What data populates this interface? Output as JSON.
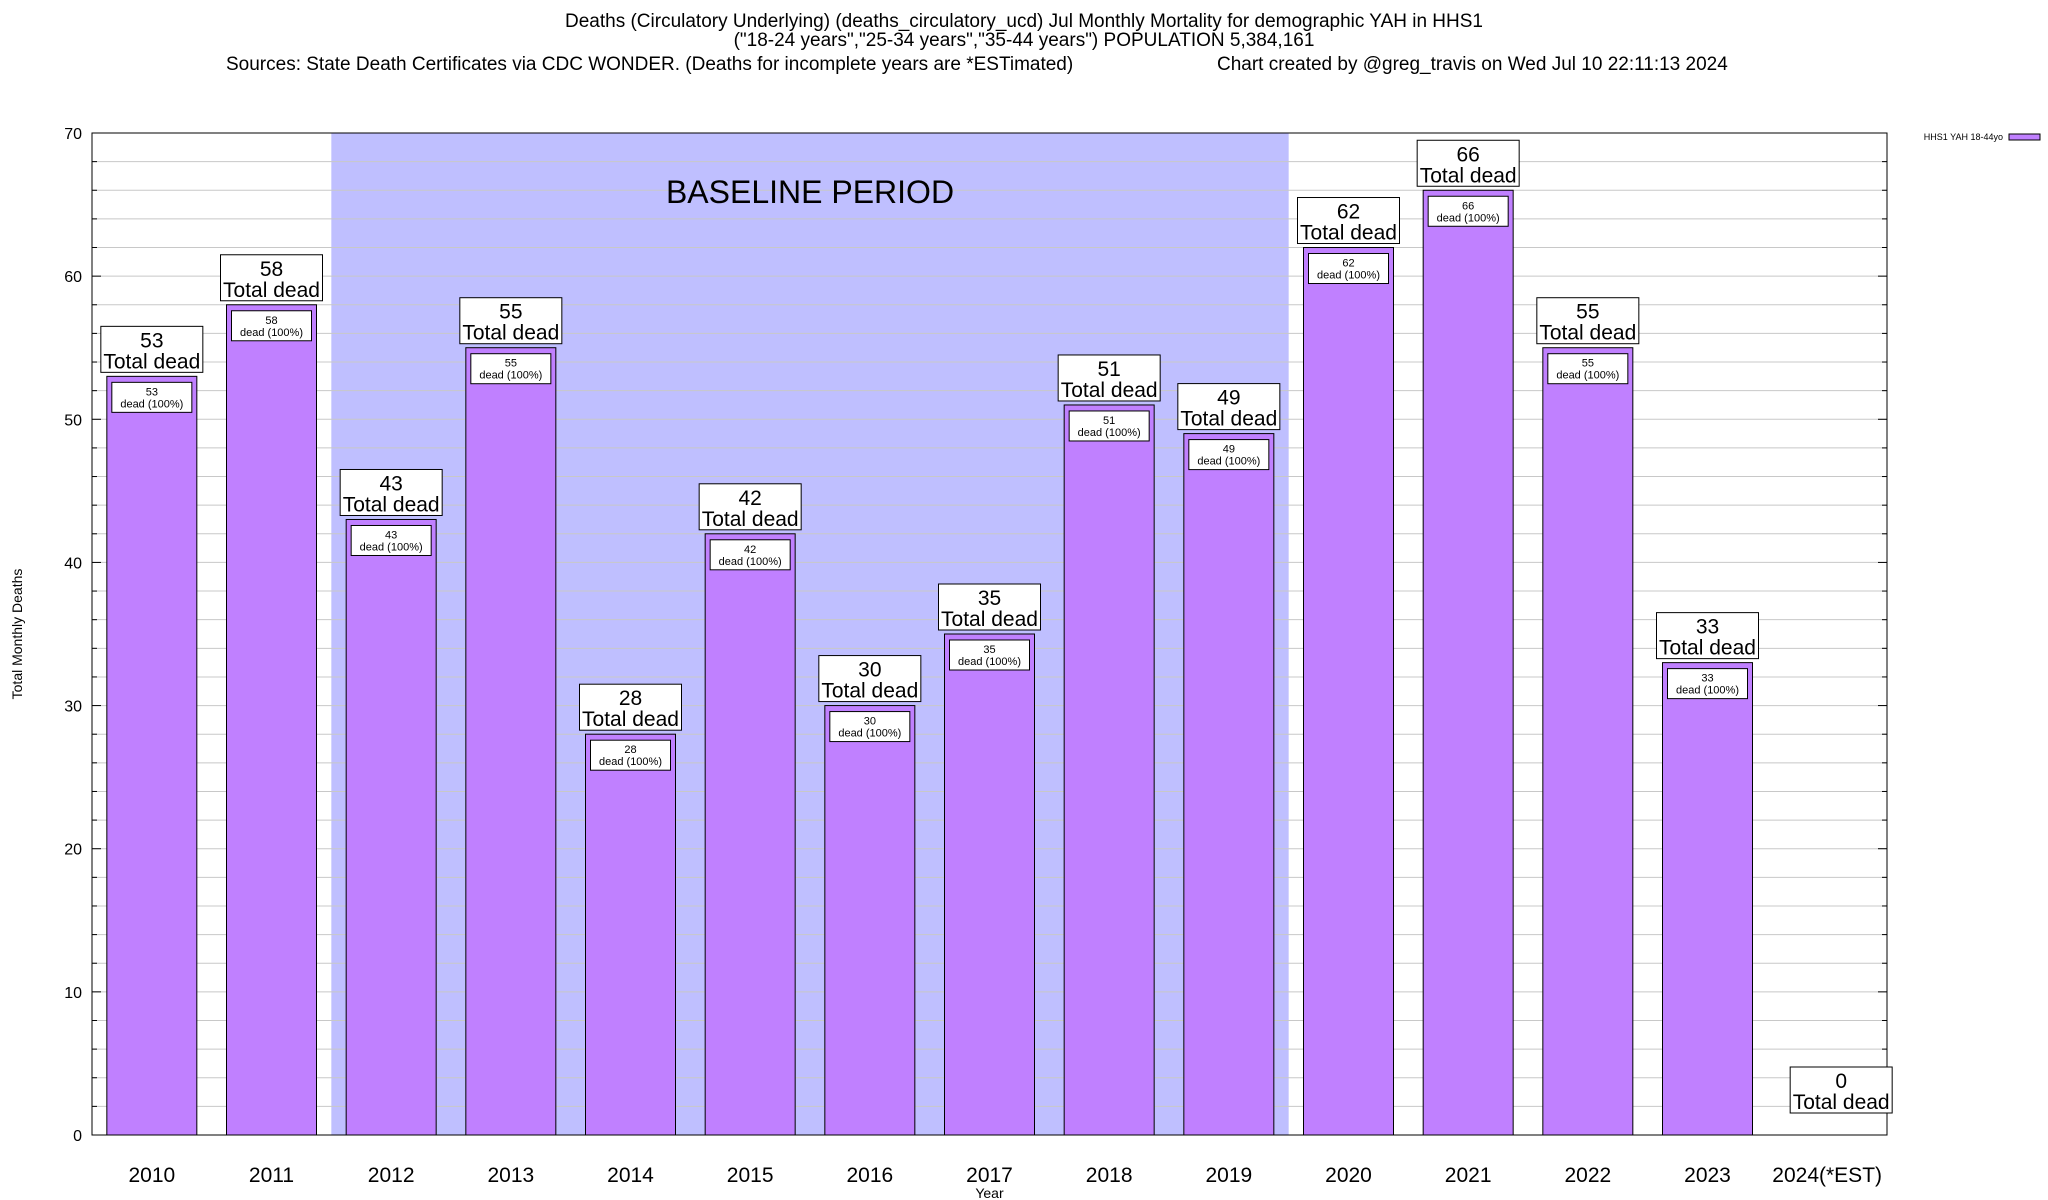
{
  "title": {
    "line1": "Deaths (Circulatory Underlying) (deaths_circulatory_ucd) Jul Monthly Mortality for demographic YAH in HHS1",
    "line2": "(\"18-24 years\",\"25-34 years\",\"35-44 years\") POPULATION 5,384,161",
    "sources": "Sources: State Death Certificates via CDC WONDER. (Deaths for incomplete years are *ESTimated)",
    "credit": "Chart created by @greg_travis on Wed Jul 10 22:11:13 2024"
  },
  "colors": {
    "bar": "#c080ff",
    "baseline_band": "#bfbfff",
    "grid": "#c8c8c8",
    "legend_swatch": "#c080ff"
  },
  "chart_data": {
    "type": "bar",
    "title": "Deaths (Circulatory Underlying) (deaths_circulatory_ucd) Jul Monthly Mortality for demographic YAH in HHS1",
    "xlabel": "Year",
    "ylabel": "Total Monthly Deaths",
    "ylim": [
      0,
      70
    ],
    "yticks": [
      0,
      10,
      20,
      30,
      40,
      50,
      60,
      70
    ],
    "y_minor_step": 2,
    "grid": true,
    "legend": {
      "label": "HHS1 YAH 18-44yo",
      "position": "top-right"
    },
    "baseline": {
      "label": "BASELINE PERIOD",
      "from": "2012",
      "to": "2019"
    },
    "total_label_suffix": "Total dead",
    "bar_label_suffix": "dead (100%)",
    "categories": [
      "2010",
      "2011",
      "2012",
      "2013",
      "2014",
      "2015",
      "2016",
      "2017",
      "2018",
      "2019",
      "2020",
      "2021",
      "2022",
      "2023",
      "2024(*EST)"
    ],
    "series": [
      {
        "name": "HHS1 YAH 18-44yo",
        "values": [
          53,
          58,
          43,
          55,
          28,
          42,
          30,
          35,
          51,
          49,
          62,
          66,
          55,
          33,
          0
        ]
      }
    ]
  }
}
